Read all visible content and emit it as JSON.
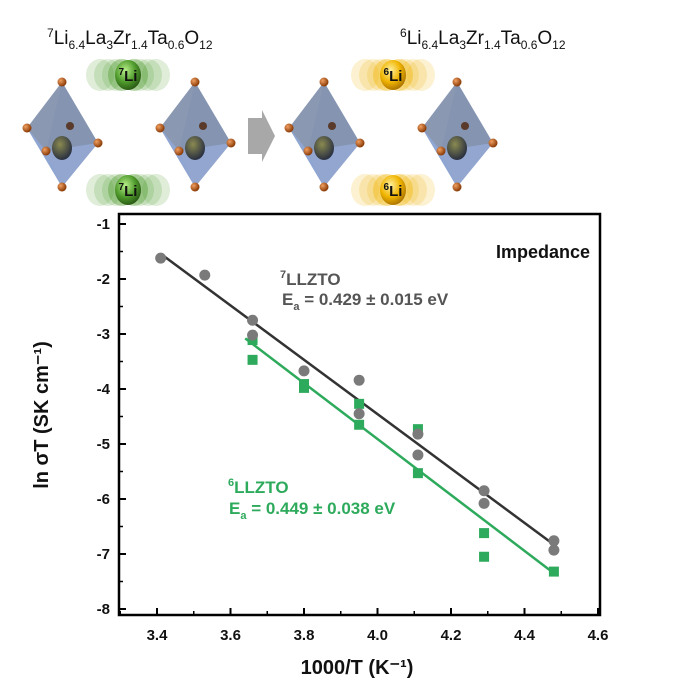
{
  "scheme": {
    "left_formula": {
      "iso": "7",
      "parts": [
        [
          "Li",
          "6.4"
        ],
        [
          "La",
          "3"
        ],
        [
          "Zr",
          "1.4"
        ],
        [
          "Ta",
          "0.6"
        ],
        [
          "O",
          "12"
        ]
      ]
    },
    "right_formula": {
      "iso": "6",
      "parts": [
        [
          "Li",
          "6.4"
        ],
        [
          "La",
          "3"
        ],
        [
          "Zr",
          "1.4"
        ],
        [
          "Ta",
          "0.6"
        ],
        [
          "O",
          "12"
        ]
      ]
    },
    "left_ion_label": {
      "iso": "7",
      "el": "Li"
    },
    "right_ion_label": {
      "iso": "6",
      "el": "Li"
    },
    "colors": {
      "li7": "#4f9a2c",
      "li6": "#f0b400",
      "octahedron": "#6f86b4",
      "oxygen": "#c85a10",
      "arrow": "#a8a8a8"
    }
  },
  "chart_data": {
    "type": "scatter",
    "xlabel": "1000/T (K⁻¹)",
    "ylabel": "ln σT (SK cm⁻¹)",
    "xlim": [
      3.3,
      4.6
    ],
    "ylim": [
      -8,
      -1
    ],
    "xticks": [
      "3.4",
      "3.6",
      "3.8",
      "4.0",
      "4.2",
      "4.4",
      "4.6"
    ],
    "yticks": [
      "-1",
      "-2",
      "-3",
      "-4",
      "-5",
      "-6",
      "-7",
      "-8"
    ],
    "panel_label": "Impedance",
    "grid": false,
    "series": [
      {
        "name": "7LLZTO",
        "iso": "7",
        "label": "LLZTO",
        "annotation": {
          "prefix": "E",
          "sub": "a",
          "text": " = 0.429 ± 0.015 eV"
        },
        "color": "#555555",
        "marker": "circle",
        "x": [
          3.41,
          3.53,
          3.66,
          3.66,
          3.8,
          3.95,
          3.95,
          4.11,
          4.11,
          4.29,
          4.29,
          4.48,
          4.48
        ],
        "y": [
          -1.62,
          -1.93,
          -2.75,
          -3.02,
          -3.67,
          -3.84,
          -4.45,
          -4.82,
          -5.2,
          -5.85,
          -6.08,
          -6.76,
          -6.93
        ],
        "fit": {
          "x": [
            3.42,
            4.48
          ],
          "y": [
            -1.59,
            -6.83
          ]
        }
      },
      {
        "name": "6LLZTO",
        "iso": "6",
        "label": "LLZTO",
        "annotation": {
          "prefix": "E",
          "sub": "a",
          "text": " = 0.449 ± 0.038 eV"
        },
        "color": "#2eaa5c",
        "marker": "square",
        "x": [
          3.66,
          3.66,
          3.8,
          3.8,
          3.95,
          3.95,
          4.11,
          4.11,
          4.29,
          4.29,
          4.48
        ],
        "y": [
          -3.11,
          -3.47,
          -3.91,
          -3.98,
          -4.27,
          -4.65,
          -4.73,
          -5.53,
          -6.62,
          -7.05,
          -7.32
        ],
        "fit": {
          "x": [
            3.64,
            4.48
          ],
          "y": [
            -3.08,
            -7.35
          ]
        }
      }
    ]
  }
}
